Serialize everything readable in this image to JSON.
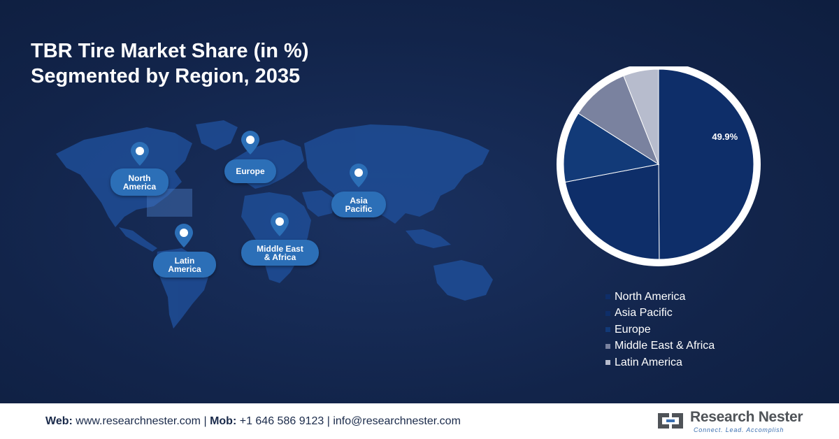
{
  "header": {
    "title_line1": "TBR Tire Market Share (in %)",
    "title_line2": "Segmented by Region, 2035"
  },
  "map": {
    "regions": [
      {
        "line1": "North",
        "line2": "America"
      },
      {
        "line1": "Europe",
        "line2": ""
      },
      {
        "line1": "Asia",
        "line2": "Pacific"
      },
      {
        "line1": "Middle East",
        "line2": "& Africa"
      },
      {
        "line1": "Latin",
        "line2": "America"
      }
    ]
  },
  "chart_data": {
    "type": "pie",
    "title": "TBR Tire Market Share (in %) Segmented by Region, 2035",
    "categories": [
      "North America",
      "Asia Pacific",
      "Europe",
      "Middle East & Africa",
      "Latin America"
    ],
    "values": [
      49.9,
      22.1,
      12.0,
      10.0,
      6.0
    ],
    "data_labels": [
      "49.9%",
      "",
      "",
      "",
      ""
    ],
    "colors": [
      "#0e2e69",
      "#0e2e69",
      "#123a78",
      "#7a829f",
      "#b7bccd"
    ],
    "legend": "bottom-right"
  },
  "footer": {
    "web_label": "Web:",
    "web_value": "www.researchnester.com",
    "sep1": "|",
    "mob_label": "Mob:",
    "mob_value": "+1 646 586 9123",
    "sep2": "|",
    "email": "info@researchnester.com",
    "logo_name": "Research Nester",
    "logo_tagline": "Connect. Lead. Accomplish"
  }
}
